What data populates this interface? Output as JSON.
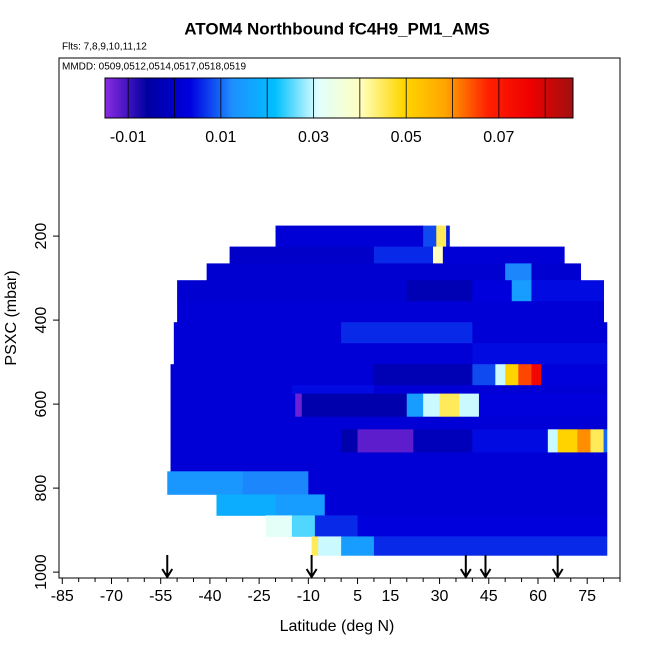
{
  "chart_data": {
    "type": "heatmap",
    "title": "ATOM4 Northbound fC4H9_PM1_AMS",
    "flights": "Flts: 7,8,9,10,11,12",
    "dates": "MMDD: 0509,0512,0514,0517,0518,0519",
    "xlabel": "Latitude (deg N)",
    "ylabel": "PSXC (mbar)",
    "xlim": [
      -86,
      85
    ],
    "xticks": [
      -85,
      -70,
      -55,
      -40,
      -25,
      -10,
      5,
      15,
      30,
      45,
      60,
      75
    ],
    "xminorticks": [
      -80,
      -75,
      -65,
      -60,
      -50,
      -45,
      -35,
      -30,
      -20,
      -15,
      -5,
      0,
      10,
      20,
      25,
      35,
      40,
      50,
      55,
      65,
      70,
      80,
      85
    ],
    "ylim": [
      -224,
      1014
    ],
    "yticks": [
      200,
      400,
      600,
      800,
      1000
    ],
    "arrows": [
      -53,
      -9,
      38,
      44,
      66
    ],
    "colorbar": {
      "lim": [
        -0.015,
        0.086
      ],
      "ticks": [
        -0.01,
        0.01,
        0.03,
        0.05,
        0.07
      ],
      "breaks": [
        -0.01,
        0,
        0.01,
        0.02,
        0.03,
        0.04,
        0.05,
        0.06,
        0.07,
        0.08
      ],
      "colors": [
        "#8a2be2",
        "#0000a0",
        "#0000e0",
        "#1e90ff",
        "#00bfff",
        "#e0ffff",
        "#ffffc0",
        "#ffd700",
        "#ffa500",
        "#ff2000",
        "#ee0000",
        "#a01010"
      ]
    },
    "cells": [
      [
        175,
        225,
        -20,
        25,
        0.002
      ],
      [
        175,
        225,
        25,
        29,
        0.008
      ],
      [
        175,
        225,
        29,
        32,
        0.045
      ],
      [
        175,
        225,
        32,
        33,
        0.005
      ],
      [
        225,
        265,
        -34,
        10,
        0.0
      ],
      [
        225,
        265,
        10,
        28,
        0.006
      ],
      [
        225,
        265,
        28,
        31,
        0.04
      ],
      [
        225,
        265,
        31,
        68,
        0.002
      ],
      [
        265,
        305,
        -41,
        50,
        0.001
      ],
      [
        265,
        305,
        50,
        58,
        0.012
      ],
      [
        265,
        305,
        58,
        73,
        0.001
      ],
      [
        305,
        355,
        -50,
        20,
        0.001
      ],
      [
        305,
        355,
        20,
        40,
        -0.003
      ],
      [
        305,
        355,
        40,
        52,
        0.003
      ],
      [
        305,
        355,
        52,
        58,
        0.015
      ],
      [
        305,
        355,
        58,
        80,
        0.004
      ],
      [
        355,
        405,
        -50,
        80,
        0.002
      ],
      [
        405,
        455,
        -51,
        0,
        0.002
      ],
      [
        405,
        455,
        0,
        40,
        0.006
      ],
      [
        405,
        455,
        40,
        81,
        0.002
      ],
      [
        455,
        505,
        -51,
        40,
        0.002
      ],
      [
        455,
        505,
        40,
        81,
        0.004
      ],
      [
        505,
        555,
        -52,
        10,
        0.002
      ],
      [
        505,
        555,
        10,
        40,
        -0.003
      ],
      [
        505,
        555,
        40,
        47,
        0.008
      ],
      [
        505,
        555,
        47,
        50,
        0.03
      ],
      [
        505,
        555,
        50,
        54,
        0.05
      ],
      [
        505,
        555,
        54,
        58,
        0.065
      ],
      [
        505,
        555,
        58,
        61,
        0.075
      ],
      [
        505,
        555,
        61,
        81,
        0.003
      ],
      [
        555,
        575,
        -52,
        -15,
        0.002
      ],
      [
        555,
        575,
        -15,
        10,
        0.004
      ],
      [
        555,
        575,
        10,
        81,
        0.002
      ],
      [
        575,
        630,
        -52,
        -14,
        0.002
      ],
      [
        575,
        630,
        -14,
        -12,
        -0.013
      ],
      [
        575,
        630,
        -12,
        20,
        -0.004
      ],
      [
        575,
        630,
        20,
        25,
        0.015
      ],
      [
        575,
        630,
        25,
        30,
        0.03
      ],
      [
        575,
        630,
        30,
        36,
        0.045
      ],
      [
        575,
        630,
        36,
        42,
        0.03
      ],
      [
        575,
        630,
        42,
        81,
        0.003
      ],
      [
        630,
        660,
        -52,
        81,
        0.002
      ],
      [
        660,
        715,
        -52,
        0,
        0.002
      ],
      [
        660,
        715,
        0,
        5,
        -0.004
      ],
      [
        660,
        715,
        5,
        22,
        -0.012
      ],
      [
        660,
        715,
        22,
        40,
        -0.002
      ],
      [
        660,
        715,
        40,
        63,
        0.004
      ],
      [
        660,
        715,
        63,
        66,
        0.03
      ],
      [
        660,
        715,
        66,
        72,
        0.05
      ],
      [
        660,
        715,
        72,
        76,
        0.06
      ],
      [
        660,
        715,
        76,
        80,
        0.045
      ],
      [
        660,
        715,
        80,
        81,
        0.01
      ],
      [
        715,
        760,
        -52,
        81,
        0.002
      ],
      [
        760,
        815,
        -53,
        -30,
        0.014
      ],
      [
        760,
        815,
        -30,
        -10,
        0.012
      ],
      [
        760,
        815,
        -10,
        81,
        0.002
      ],
      [
        815,
        865,
        -38,
        -20,
        0.018
      ],
      [
        815,
        865,
        -20,
        -5,
        0.015
      ],
      [
        815,
        865,
        -5,
        81,
        0.002
      ],
      [
        865,
        915,
        -23,
        -15,
        0.032
      ],
      [
        865,
        915,
        -15,
        -8,
        0.025
      ],
      [
        865,
        915,
        -8,
        5,
        0.006
      ],
      [
        865,
        915,
        5,
        81,
        0.003
      ],
      [
        915,
        960,
        -9,
        -7,
        0.045
      ],
      [
        915,
        960,
        -7,
        0,
        0.03
      ],
      [
        915,
        960,
        0,
        10,
        0.015
      ],
      [
        915,
        960,
        10,
        81,
        0.006
      ]
    ]
  }
}
